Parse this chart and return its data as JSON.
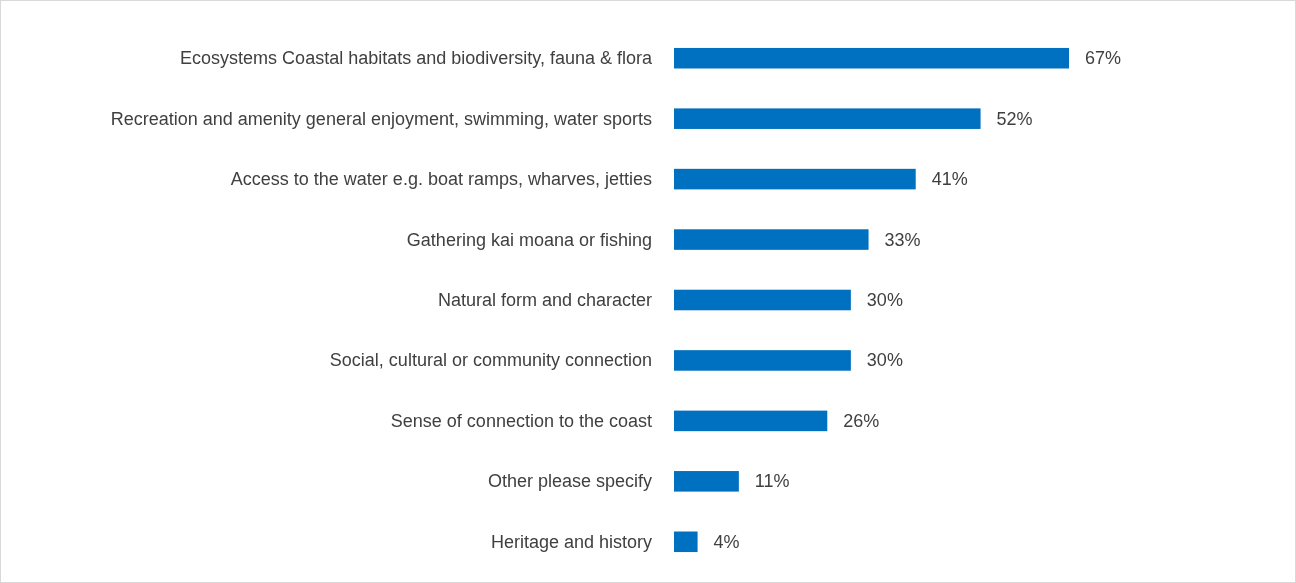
{
  "chart_data": {
    "type": "bar",
    "orientation": "horizontal",
    "categories": [
      "Ecosystems Coastal habitats and biodiversity, fauna & flora",
      "Recreation and amenity general enjoyment, swimming, water sports",
      "Access to the water e.g. boat ramps, wharves, jetties",
      "Gathering kai moana or fishing",
      "Natural form and character",
      "Social, cultural or community connection",
      "Sense of connection to the coast",
      "Other please specify",
      "Heritage and history"
    ],
    "values": [
      67,
      52,
      41,
      33,
      30,
      30,
      26,
      11,
      4
    ],
    "value_labels": [
      "67%",
      "52%",
      "41%",
      "33%",
      "30%",
      "30%",
      "26%",
      "11%",
      "4%"
    ],
    "color": "#0070c0"
  }
}
